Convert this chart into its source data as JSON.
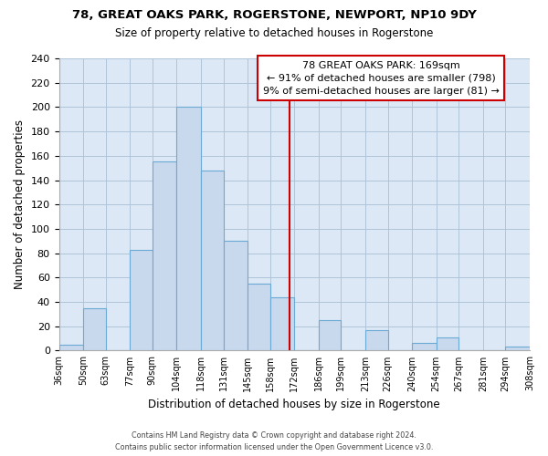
{
  "title1": "78, GREAT OAKS PARK, ROGERSTONE, NEWPORT, NP10 9DY",
  "title2": "Size of property relative to detached houses in Rogerstone",
  "xlabel": "Distribution of detached houses by size in Rogerstone",
  "ylabel": "Number of detached properties",
  "bar_edges": [
    36,
    50,
    63,
    77,
    90,
    104,
    118,
    131,
    145,
    158,
    172,
    186,
    199,
    213,
    226,
    240,
    254,
    267,
    281,
    294,
    308
  ],
  "bar_heights": [
    5,
    35,
    0,
    83,
    155,
    200,
    148,
    90,
    55,
    44,
    0,
    25,
    0,
    17,
    0,
    6,
    11,
    0,
    0,
    3
  ],
  "bar_color": "#c8d8ed",
  "bar_edge_color": "#6aaad4",
  "vline_x": 169,
  "vline_color": "#cc0000",
  "annotation_title": "78 GREAT OAKS PARK: 169sqm",
  "annotation_line1": "← 91% of detached houses are smaller (798)",
  "annotation_line2": "9% of semi-detached houses are larger (81) →",
  "annotation_box_facecolor": "#ffffff",
  "annotation_box_edgecolor": "#cc0000",
  "ylim": [
    0,
    240
  ],
  "yticks": [
    0,
    20,
    40,
    60,
    80,
    100,
    120,
    140,
    160,
    180,
    200,
    220,
    240
  ],
  "tick_labels": [
    "36sqm",
    "50sqm",
    "63sqm",
    "77sqm",
    "90sqm",
    "104sqm",
    "118sqm",
    "131sqm",
    "145sqm",
    "158sqm",
    "172sqm",
    "186sqm",
    "199sqm",
    "213sqm",
    "226sqm",
    "240sqm",
    "254sqm",
    "267sqm",
    "281sqm",
    "294sqm",
    "308sqm"
  ],
  "footer1": "Contains HM Land Registry data © Crown copyright and database right 2024.",
  "footer2": "Contains public sector information licensed under the Open Government Licence v3.0.",
  "plot_bg_color": "#dce8f5",
  "fig_bg_color": "#ffffff",
  "grid_color": "#b0c4d8"
}
